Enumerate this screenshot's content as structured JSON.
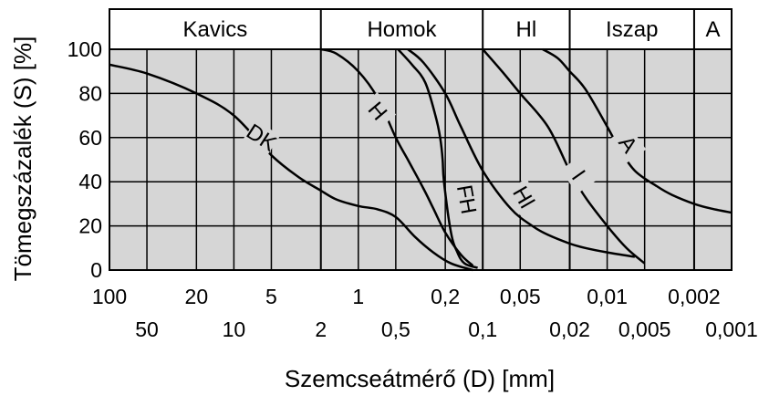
{
  "chart_data": {
    "type": "line",
    "xlabel": "Szemcseátmérő (D) [mm]",
    "ylabel": "Tömegszázalék (S) [%]",
    "x_scale": "log",
    "x_reversed": true,
    "xlim": [
      100,
      0.001
    ],
    "ylim": [
      0,
      100
    ],
    "grid": true,
    "yticks": [
      {
        "v": 0,
        "t": "0"
      },
      {
        "v": 20,
        "t": "20"
      },
      {
        "v": 40,
        "t": "40"
      },
      {
        "v": 60,
        "t": "60"
      },
      {
        "v": 80,
        "t": "80"
      },
      {
        "v": 100,
        "t": "100"
      }
    ],
    "xticks_upper": [
      {
        "v": 100,
        "t": "100"
      },
      {
        "v": 20,
        "t": "20"
      },
      {
        "v": 5,
        "t": "5"
      },
      {
        "v": 1,
        "t": "1"
      },
      {
        "v": 0.2,
        "t": "0,2"
      },
      {
        "v": 0.05,
        "t": "0,05"
      },
      {
        "v": 0.01,
        "t": "0,01"
      },
      {
        "v": 0.002,
        "t": "0,002"
      }
    ],
    "xticks_lower": [
      {
        "v": 50,
        "t": "50"
      },
      {
        "v": 10,
        "t": "10"
      },
      {
        "v": 2,
        "t": "2"
      },
      {
        "v": 0.5,
        "t": "0,5"
      },
      {
        "v": 0.1,
        "t": "0,1"
      },
      {
        "v": 0.02,
        "t": "0,02"
      },
      {
        "v": 0.005,
        "t": "0,005"
      },
      {
        "v": 0.001,
        "t": "0,001"
      }
    ],
    "zones": [
      {
        "label": "Kavics",
        "from": 100,
        "to": 2
      },
      {
        "label": "Homok",
        "from": 2,
        "to": 0.1
      },
      {
        "label": "Hl",
        "from": 0.1,
        "to": 0.02
      },
      {
        "label": "Iszap",
        "from": 0.02,
        "to": 0.002
      },
      {
        "label": "A",
        "from": 0.002,
        "to": 0.001
      }
    ],
    "series": [
      {
        "name": "DK",
        "label_at": [
          6,
          60
        ],
        "label_rot": 33,
        "x": [
          100,
          50,
          20,
          10,
          5,
          3,
          2,
          1.5,
          1,
          0.7,
          0.5,
          0.35,
          0.25,
          0.18,
          0.12
        ],
        "y": [
          93,
          89,
          80,
          70,
          52,
          42,
          36,
          32,
          29,
          27.5,
          24,
          15,
          8,
          3,
          0
        ]
      },
      {
        "name": "H",
        "label_at": [
          0.7,
          72
        ],
        "label_rot": 50,
        "x": [
          2,
          1.5,
          1,
          0.7,
          0.5,
          0.4,
          0.3,
          0.25,
          0.2,
          0.15,
          0.12
        ],
        "y": [
          100,
          98,
          90,
          78,
          60,
          50,
          37,
          28,
          17,
          7,
          2
        ]
      },
      {
        "name": "FH",
        "label_at": [
          0.135,
          32
        ],
        "label_rot": 80,
        "x": [
          0.48,
          0.37,
          0.29,
          0.24,
          0.22,
          0.21,
          0.205,
          0.18,
          0.16,
          0.14,
          0.11
        ],
        "y": [
          100,
          93,
          85,
          70,
          60,
          50,
          40,
          17,
          8,
          3,
          1
        ]
      },
      {
        "name": "Hl",
        "label_at": [
          0.047,
          33
        ],
        "label_rot": 60,
        "x": [
          0.4,
          0.3,
          0.2,
          0.15,
          0.1,
          0.06,
          0.04,
          0.03,
          0.02,
          0.015,
          0.01,
          0.006
        ],
        "y": [
          100,
          94,
          80,
          65,
          45,
          28,
          20,
          16,
          12,
          10,
          8,
          6
        ]
      },
      {
        "name": "I",
        "label_at": [
          0.017,
          43
        ],
        "label_rot": 55,
        "x": [
          0.1,
          0.07,
          0.05,
          0.03,
          0.02,
          0.015,
          0.01,
          0.007,
          0.005
        ],
        "y": [
          100,
          90,
          80,
          65,
          45,
          33,
          20,
          10,
          3
        ]
      },
      {
        "name": "A",
        "label_at": [
          0.0068,
          57
        ],
        "label_rot": 55,
        "x": [
          0.033,
          0.025,
          0.02,
          0.015,
          0.01,
          0.008,
          0.006,
          0.004,
          0.003,
          0.002,
          0.0015,
          0.001
        ],
        "y": [
          100,
          96,
          90,
          82,
          65,
          55,
          45,
          38,
          34,
          30,
          28,
          26
        ]
      }
    ]
  }
}
